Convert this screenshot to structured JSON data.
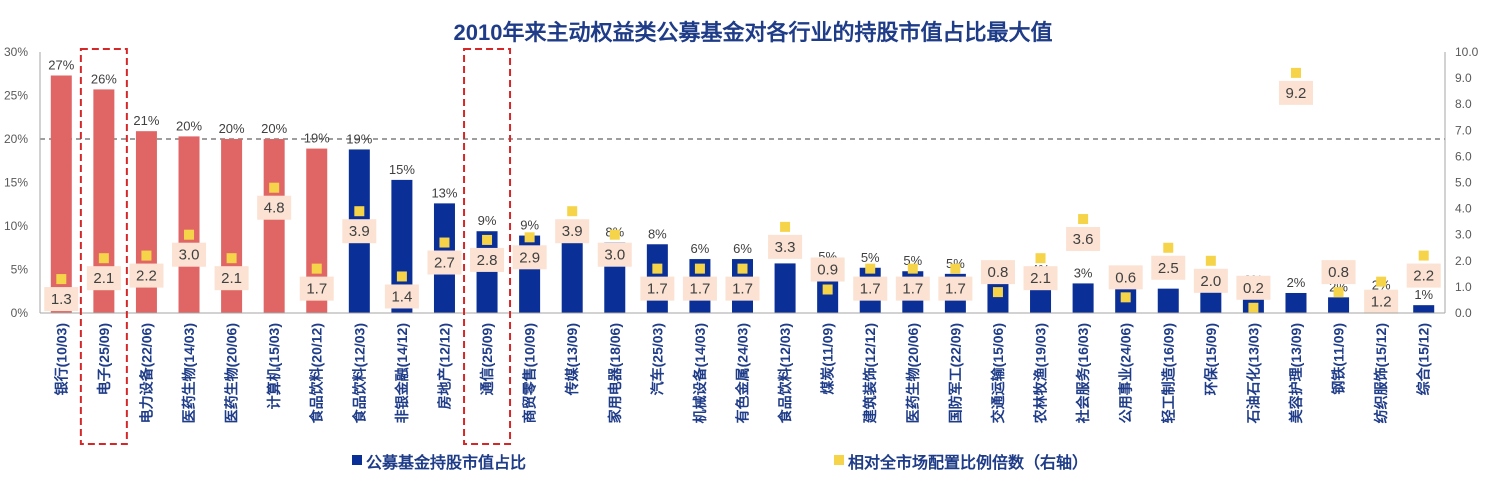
{
  "chart_data": {
    "type": "bar",
    "title": "2010年来主动权益类公募基金对各行业的持股市值占比最大值",
    "categories": [
      "银行(10/03)",
      "电子(25/09)",
      "电力设备(22/06)",
      "医药生物(14/03)",
      "医药生物(20/06)",
      "计算机(15/03)",
      "食品饮料(20/12)",
      "食品饮料(12/03)",
      "非银金融(14/12)",
      "房地产(12/12)",
      "通信(25/09)",
      "商贸零售(10/09)",
      "传媒(13/09)",
      "家用电器(18/06)",
      "汽车(25/03)",
      "机械设备(14/03)",
      "有色金属(24/03)",
      "食品饮料(12/03)",
      "煤炭(11/09)",
      "建筑装饰(12/12)",
      "医药生物(20/06)",
      "国防军工(22/09)",
      "交通运输(15/06)",
      "农林牧渔(19/03)",
      "社会服务(16/03)",
      "公用事业(24/06)",
      "轻工制造(16/09)",
      "环保(15/09)",
      "石油石化(13/03)",
      "美容护理(13/09)",
      "钢铁(11/09)",
      "纺织服饰(15/12)",
      "综合(15/12)"
    ],
    "series": [
      {
        "name": "公募基金持股市值占比",
        "axis": "left",
        "values": [
          27.3,
          25.7,
          20.9,
          20.3,
          20.0,
          20.0,
          18.9,
          18.8,
          15.3,
          12.6,
          9.4,
          8.9,
          8.2,
          8.1,
          7.9,
          6.2,
          6.2,
          5.7,
          5.3,
          5.2,
          4.8,
          4.5,
          4.1,
          3.8,
          3.4,
          3.0,
          2.8,
          2.7,
          2.6,
          2.3,
          1.8,
          2.0,
          0.9
        ],
        "labels": [
          "27%",
          "26%",
          "21%",
          "20%",
          "20%",
          "20%",
          "19%",
          "19%",
          "15%",
          "13%",
          "9%",
          "9%",
          "8%",
          "8%",
          "8%",
          "6%",
          "6%",
          "",
          "5%",
          "5%",
          "5%",
          "5%",
          "4%",
          "4%",
          "3%",
          "3%",
          "",
          "",
          "3%",
          "2%",
          "2%",
          "2%",
          "1%"
        ],
        "highlight": [
          true,
          true,
          true,
          true,
          true,
          true,
          true,
          false,
          false,
          false,
          false,
          false,
          false,
          false,
          false,
          false,
          false,
          false,
          false,
          false,
          false,
          false,
          false,
          false,
          false,
          false,
          false,
          false,
          false,
          false,
          false,
          false,
          false
        ]
      },
      {
        "name": "相对全市场配置比例倍数（右轴）",
        "axis": "right",
        "type": "scatter",
        "values": [
          1.3,
          2.1,
          2.2,
          3.0,
          2.1,
          4.8,
          1.7,
          3.9,
          1.4,
          2.7,
          2.8,
          2.9,
          3.9,
          3.0,
          1.7,
          1.7,
          1.7,
          3.3,
          0.9,
          1.7,
          1.7,
          1.7,
          0.8,
          2.1,
          3.6,
          0.6,
          2.5,
          2.0,
          0.2,
          9.2,
          0.8,
          1.2,
          2.2
        ],
        "labels": [
          "1.3",
          "2.1",
          "2.2",
          "3.0",
          "2.1",
          "4.8",
          "1.7",
          "3.9",
          "1.4",
          "2.7",
          "2.8",
          "2.9",
          "3.9",
          "3.0",
          "1.7",
          "1.7",
          "1.7",
          "3.3",
          "0.9",
          "1.7",
          "1.7",
          "1.7",
          "0.8",
          "2.1",
          "3.6",
          "0.6",
          "2.5",
          "2.0",
          "0.2",
          "9.2",
          "0.8",
          "1.2",
          "2.2"
        ]
      }
    ],
    "yleft": {
      "ylim": [
        0,
        30
      ],
      "ticks": [
        "0%",
        "5%",
        "10%",
        "15%",
        "20%",
        "25%",
        "30%"
      ]
    },
    "yright": {
      "ylim": [
        0,
        10
      ],
      "ticks": [
        "0.0",
        "1.0",
        "2.0",
        "3.0",
        "4.0",
        "5.0",
        "6.0",
        "7.0",
        "8.0",
        "9.0",
        "10.0"
      ]
    },
    "reference_line": {
      "axis": "left",
      "value": 20
    },
    "highlight_boxes": [
      "电子(25/09)",
      "通信(25/09)"
    ],
    "colors": {
      "bar_dark": "#0a2f96",
      "bar_highlight": "#e06666",
      "marker": "#f5d44a",
      "marker_label_bg": "#fbe2d2",
      "title": "#1f3c88",
      "box": "#d62728"
    },
    "legend": {
      "position": "bottom"
    }
  }
}
